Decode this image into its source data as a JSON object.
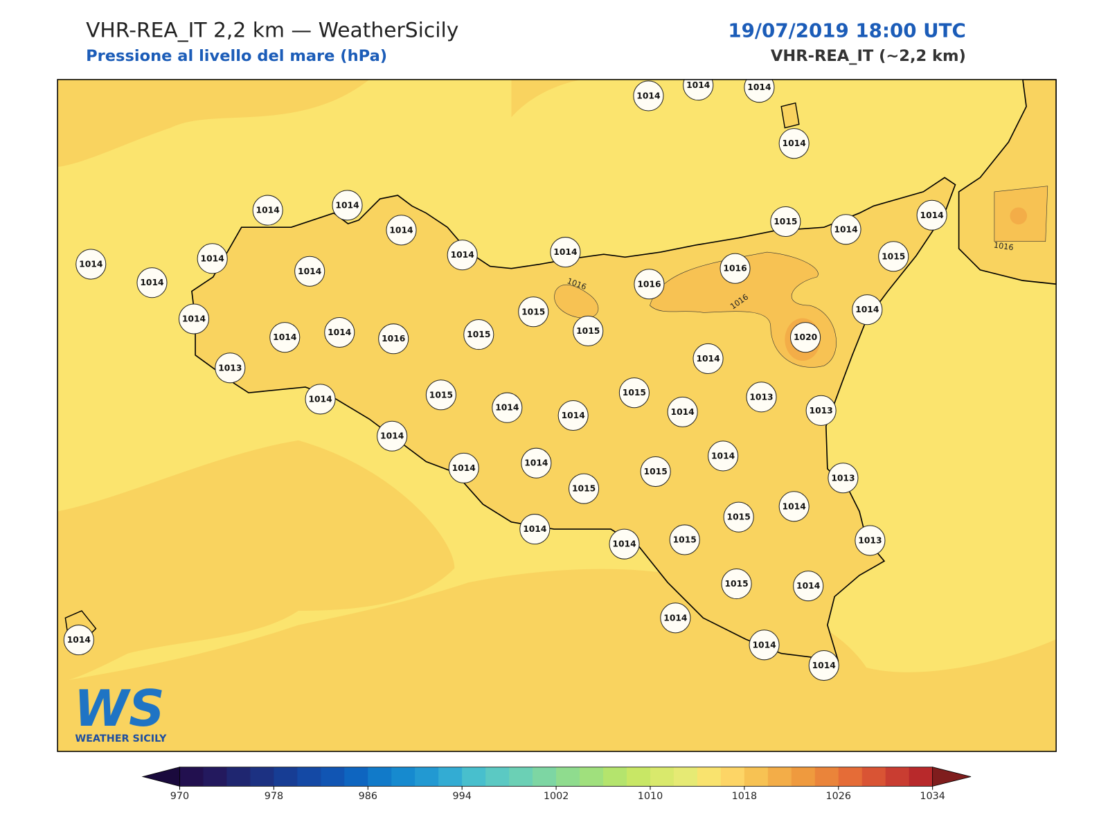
{
  "header": {
    "title": "VHR-REA_IT 2,2 km — WeatherSicily",
    "subtitle": "Pressione al livello del mare (hPa)",
    "date": "19/07/2019 18:00 UTC",
    "model": "VHR-REA_IT (~2,2 km)"
  },
  "stations": [
    1014,
    1014,
    1014,
    1014,
    1014,
    1014,
    1014,
    1014,
    1014,
    1015,
    1014,
    1014,
    1014,
    1014,
    1014,
    1014,
    1016,
    1016,
    1015,
    1015,
    1014,
    1014,
    1014,
    1014,
    1016,
    1015,
    1015,
    1020,
    1014,
    1013,
    1014,
    1015,
    1015,
    1013,
    1014,
    1014,
    1014,
    1013,
    1014,
    1014,
    1014,
    1014,
    1015,
    1013,
    1015,
    1014,
    1015,
    1014,
    1014,
    1015,
    1013,
    1015,
    1014,
    1014,
    1014,
    1014,
    1014
  ],
  "contour_labels": [
    1016,
    1016,
    1016
  ],
  "colorbar": {
    "lim": [
      970,
      1034
    ],
    "ticks": [
      970,
      978,
      986,
      994,
      1002,
      1010,
      1018,
      1026,
      1034
    ],
    "colors": [
      "#22104f",
      "#23195e",
      "#1f2670",
      "#1c3182",
      "#173d94",
      "#1449a5",
      "#1155b3",
      "#0e65c0",
      "#117ac9",
      "#168acf",
      "#2299d2",
      "#33acd3",
      "#48bfcd",
      "#5bc9c3",
      "#6bd0b5",
      "#7dd6a3",
      "#8fdc8e",
      "#a0e07d",
      "#b4e46d",
      "#c8e765",
      "#d9e96c",
      "#e6ea74",
      "#f9e36e",
      "#fdd566",
      "#f7c253",
      "#f3ad48",
      "#ef9a3e",
      "#ea843a",
      "#e56c37",
      "#d95434",
      "#c93d31",
      "#b8292b"
    ],
    "under_color": "#1a0a3d",
    "over_color": "#7f1d1d"
  },
  "logo": {
    "mark": "WS",
    "name": "WEATHER SICILY"
  }
}
